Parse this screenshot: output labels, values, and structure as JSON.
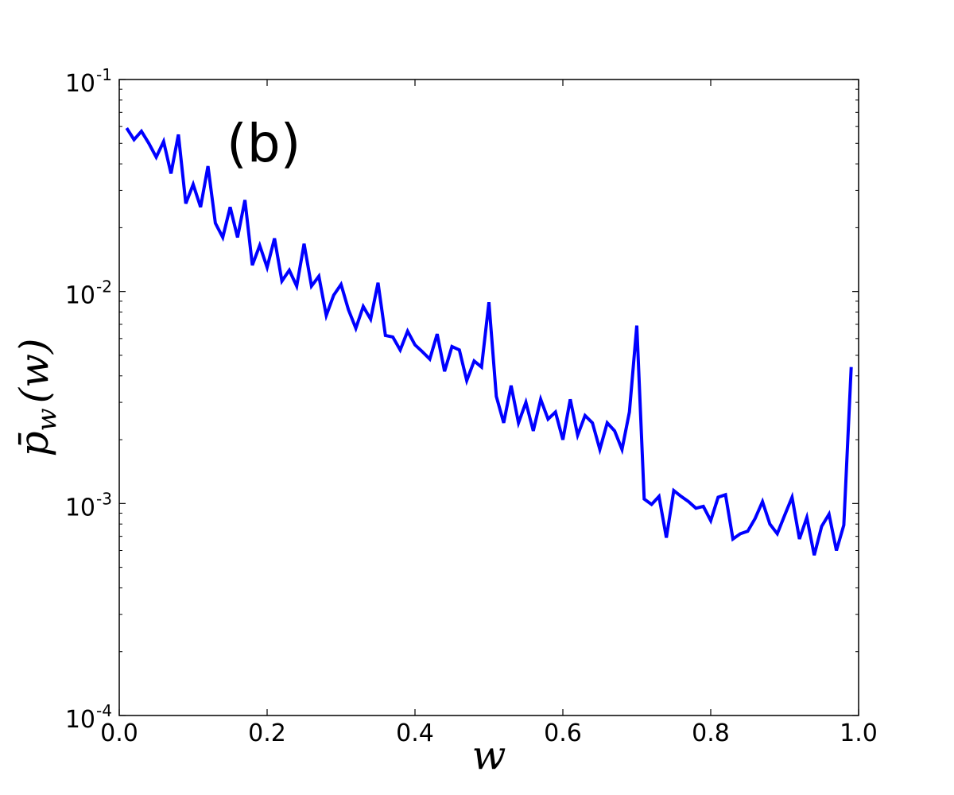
{
  "chart_data": {
    "type": "line",
    "panel_label": "(b)",
    "xlabel": "w",
    "ylabel": {
      "main": "p̄",
      "subscript": "w",
      "suffix": "(w)"
    },
    "xlim": [
      0.0,
      1.0
    ],
    "ylim": [
      0.0001,
      0.1
    ],
    "yscale": "log",
    "grid": false,
    "x_ticks": [
      "0.0",
      "0.2",
      "0.4",
      "0.6",
      "0.8",
      "1.0"
    ],
    "y_ticks": [
      {
        "base": "10",
        "exp": "-4",
        "value": 0.0001
      },
      {
        "base": "10",
        "exp": "-3",
        "value": 0.001
      },
      {
        "base": "10",
        "exp": "-2",
        "value": 0.01
      },
      {
        "base": "10",
        "exp": "-1",
        "value": 0.1
      }
    ],
    "line_color": "#0000ff",
    "series": [
      {
        "x": [
          0.01,
          0.02,
          0.03,
          0.04,
          0.05,
          0.06,
          0.07,
          0.08,
          0.09,
          0.1,
          0.11,
          0.12,
          0.13,
          0.14,
          0.15,
          0.16,
          0.17,
          0.18,
          0.19,
          0.2,
          0.21,
          0.22,
          0.23,
          0.24,
          0.25,
          0.26,
          0.27,
          0.28,
          0.29,
          0.3,
          0.31,
          0.32,
          0.33,
          0.34,
          0.35,
          0.36,
          0.37,
          0.38,
          0.39,
          0.4,
          0.41,
          0.42,
          0.43,
          0.44,
          0.45,
          0.46,
          0.47,
          0.48,
          0.49,
          0.5,
          0.51,
          0.52,
          0.53,
          0.54,
          0.55,
          0.56,
          0.57,
          0.58,
          0.59,
          0.6,
          0.61,
          0.62,
          0.63,
          0.64,
          0.65,
          0.66,
          0.67,
          0.68,
          0.69,
          0.7,
          0.71,
          0.72,
          0.73,
          0.74,
          0.75,
          0.76,
          0.77,
          0.78,
          0.79,
          0.8,
          0.81,
          0.82,
          0.83,
          0.84,
          0.85,
          0.86,
          0.87,
          0.88,
          0.89,
          0.9,
          0.91,
          0.92,
          0.93,
          0.94,
          0.95,
          0.96,
          0.97,
          0.98,
          0.99
        ],
        "y": [
          0.059,
          0.052,
          0.057,
          0.05,
          0.043,
          0.051,
          0.036,
          0.055,
          0.026,
          0.032,
          0.025,
          0.039,
          0.021,
          0.018,
          0.025,
          0.018,
          0.027,
          0.0133,
          0.0165,
          0.013,
          0.0178,
          0.0112,
          0.0126,
          0.0106,
          0.0168,
          0.0106,
          0.0118,
          0.0077,
          0.0096,
          0.0108,
          0.0082,
          0.0067,
          0.0085,
          0.0074,
          0.011,
          0.0062,
          0.0061,
          0.0053,
          0.0065,
          0.0056,
          0.0052,
          0.0048,
          0.0063,
          0.0042,
          0.0055,
          0.0053,
          0.0038,
          0.0047,
          0.0044,
          0.0089,
          0.0032,
          0.0024,
          0.0036,
          0.0024,
          0.003,
          0.0022,
          0.0031,
          0.0025,
          0.0027,
          0.002,
          0.0031,
          0.0021,
          0.0026,
          0.0024,
          0.0018,
          0.0024,
          0.0022,
          0.0018,
          0.0027,
          0.0069,
          0.00105,
          0.00099,
          0.00108,
          0.00069,
          0.00115,
          0.00108,
          0.00102,
          0.00095,
          0.00097,
          0.00083,
          0.00107,
          0.0011,
          0.00068,
          0.00072,
          0.00074,
          0.00085,
          0.00102,
          0.0008,
          0.00072,
          0.00088,
          0.00107,
          0.00068,
          0.00086,
          0.00057,
          0.00078,
          0.00089,
          0.0006,
          0.00079,
          0.0044
        ]
      }
    ]
  }
}
